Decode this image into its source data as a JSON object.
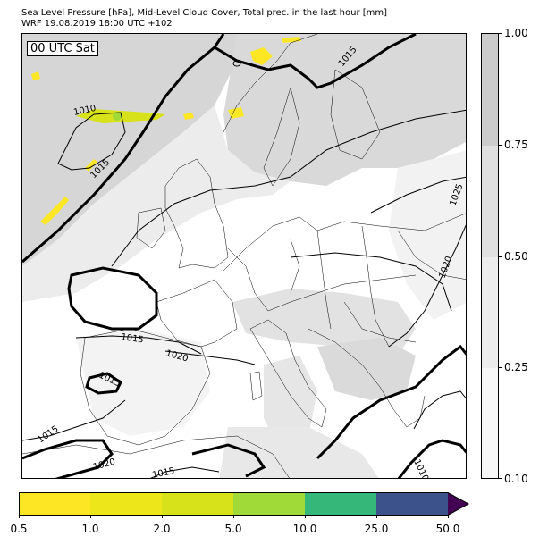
{
  "title_line1": "Sea Level Pressure [hPa], Mid-Level Cloud Cover, Total prec. in the last hour [mm]",
  "title_line2": "WRF 19.08.2019 18:00 UTC +102",
  "time_label": "00 UTC Sat",
  "cloud_colorbar": {
    "ticks": [
      "1.00",
      "0.75",
      "0.50",
      "0.25",
      "0.10"
    ],
    "colors": [
      "#cccccc",
      "#e0e0e0",
      "#ececec",
      "#f7f7f7"
    ]
  },
  "precip_colorbar": {
    "ticks": [
      "0.5",
      "1.0",
      "2.0",
      "5.0",
      "10.0",
      "25.0",
      "50.0"
    ],
    "colors": [
      "#fde725",
      "#ede61b",
      "#d8e21a",
      "#a0da39",
      "#35b779",
      "#3b528b",
      "#440154"
    ]
  },
  "isobar_labels": [
    "1015",
    "1010",
    "1015",
    "1025",
    "1020",
    "1015",
    "1020",
    "1015",
    "1015",
    "1020",
    "1015",
    "1010"
  ]
}
